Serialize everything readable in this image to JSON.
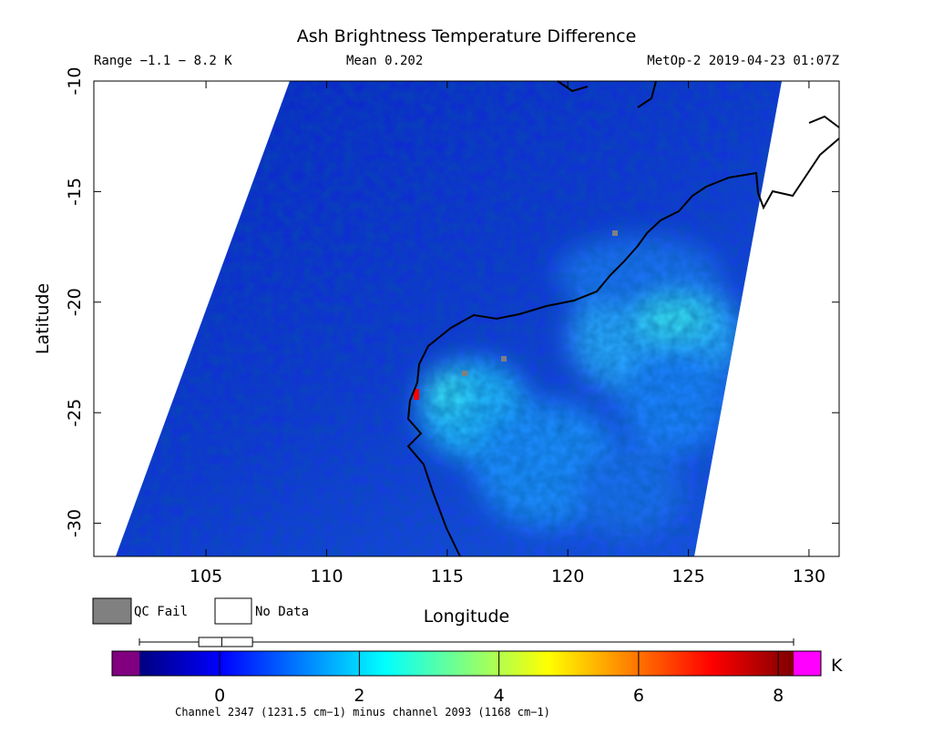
{
  "chart_data": {
    "type": "map",
    "title": "Ash Brightness Temperature Difference",
    "subtitle_left": "Range −1.1 − 8.2 K",
    "subtitle_center": "Mean 0.202",
    "subtitle_right": "MetOp-2 2019-04-23 01:07Z",
    "x_label": "Longitude",
    "y_label": "Latitude",
    "xlim": [
      100.35,
      131.25
    ],
    "xticks": [
      105,
      110,
      115,
      120,
      125,
      130
    ],
    "ylim": [
      -31.5,
      -10
    ],
    "yticks": [
      -10,
      -15,
      -20,
      -25,
      -30
    ],
    "legend": [
      "QC Fail",
      "No Data"
    ],
    "legend_colors": [
      "#808080",
      "#ffffff"
    ],
    "colorbar": {
      "unit": "K",
      "clim": [
        -1.15,
        8.22
      ],
      "ticks": [
        0,
        2,
        4,
        6,
        8
      ],
      "colormap": [
        "#00007f",
        "#0000ff",
        "#0080ff",
        "#00ffff",
        "#80ff80",
        "#ffff00",
        "#ff8000",
        "#ff0000",
        "#7f0000"
      ],
      "under_color": "#800080",
      "over_color": "#ff00ff",
      "box": {
        "min": -1.15,
        "q1": -0.3,
        "median": 0.03,
        "q3": 0.47,
        "max": 8.22
      },
      "caption": "Channel 2347 (1231.5 cm−1) minus channel 2093 (1168 cm−1)"
    }
  }
}
